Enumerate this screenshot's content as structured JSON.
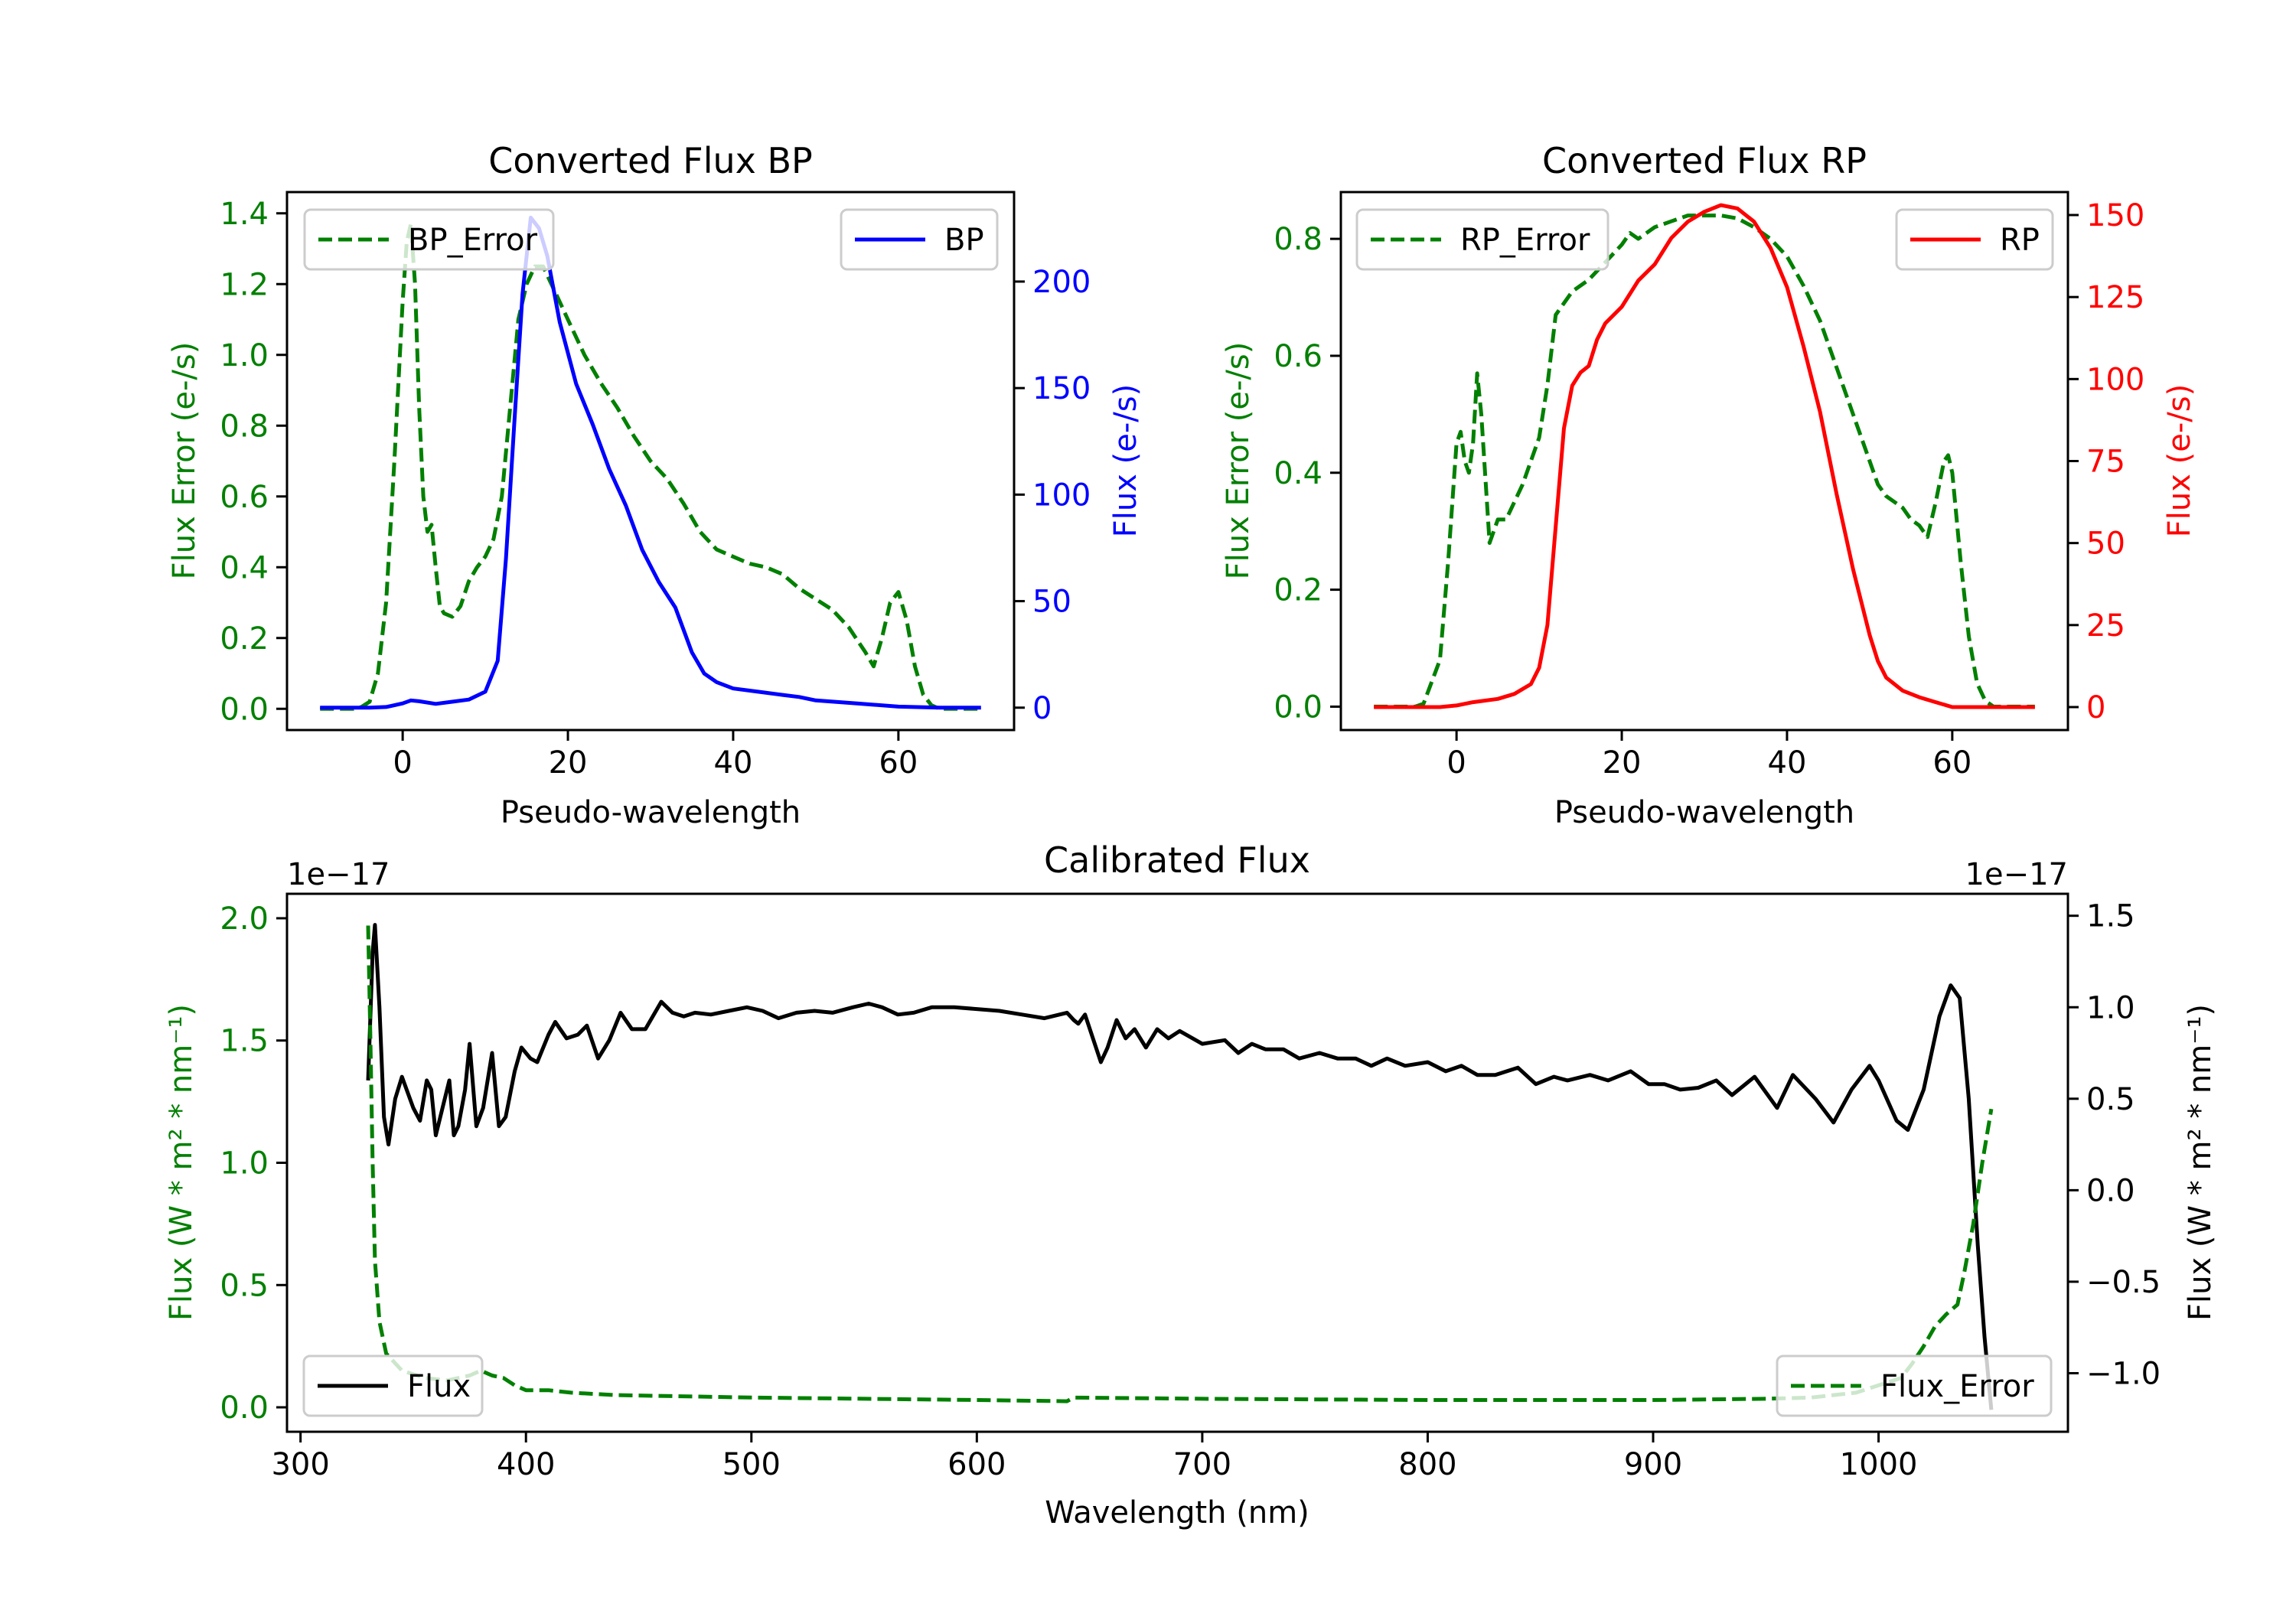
{
  "colors": {
    "bp": "#0000ff",
    "rp": "#ff0000",
    "error": "#008000",
    "flux": "#000000"
  },
  "chart_data": [
    {
      "id": "bp",
      "type": "line",
      "title": "Converted Flux BP",
      "xlabel": "Pseudo-wavelength",
      "ylabel_left": "Flux Error (e-/s)",
      "ylabel_right": "Flux (e-/s)",
      "xlim": [
        -14,
        74
      ],
      "ylim_left": [
        -0.06,
        1.46
      ],
      "ylim_right": [
        -10.5,
        242
      ],
      "xticks": [
        0,
        20,
        40,
        60
      ],
      "xtick_labels": [
        "0",
        "20",
        "40",
        "60"
      ],
      "yticks_left": [
        0.0,
        0.2,
        0.4,
        0.6,
        0.8,
        1.0,
        1.2,
        1.4
      ],
      "ytick_labels_left": [
        "0.0",
        "0.2",
        "0.4",
        "0.6",
        "0.8",
        "1.0",
        "1.2",
        "1.4"
      ],
      "yticks_right": [
        0,
        50,
        100,
        150,
        200
      ],
      "ytick_labels_right": [
        "0",
        "50",
        "100",
        "150",
        "200"
      ],
      "legend": [
        {
          "label": "BP_Error",
          "placement": "upper-left",
          "style": "dashed"
        },
        {
          "label": "BP",
          "placement": "upper-right",
          "style": "solid"
        }
      ],
      "series": [
        {
          "name": "BP_Error",
          "axis": "left",
          "style": "dashed",
          "color_key": "error",
          "x": [
            -10,
            -6,
            -5,
            -4,
            -3,
            -2,
            -1,
            0,
            0.5,
            1,
            1.5,
            2,
            2.5,
            3,
            3.5,
            4,
            4.5,
            5,
            6,
            7,
            8,
            9,
            10,
            11,
            12,
            13,
            14,
            15,
            16,
            17,
            18,
            19,
            20,
            22,
            24,
            26,
            28,
            30,
            32,
            34,
            36,
            38,
            40,
            42,
            44,
            46,
            48,
            50,
            52,
            54,
            56,
            57,
            58,
            59,
            60,
            61,
            62,
            63,
            64,
            65,
            70
          ],
          "y": [
            0,
            0,
            0.005,
            0.02,
            0.1,
            0.3,
            0.7,
            1.15,
            1.32,
            1.37,
            1.2,
            0.85,
            0.6,
            0.5,
            0.52,
            0.4,
            0.29,
            0.27,
            0.26,
            0.29,
            0.36,
            0.4,
            0.43,
            0.48,
            0.6,
            0.85,
            1.1,
            1.2,
            1.25,
            1.25,
            1.2,
            1.15,
            1.1,
            1.0,
            0.92,
            0.85,
            0.77,
            0.7,
            0.65,
            0.58,
            0.5,
            0.45,
            0.43,
            0.41,
            0.4,
            0.38,
            0.34,
            0.31,
            0.28,
            0.23,
            0.16,
            0.12,
            0.2,
            0.3,
            0.33,
            0.25,
            0.12,
            0.04,
            0.01,
            0,
            0
          ]
        },
        {
          "name": "BP",
          "axis": "right",
          "style": "solid",
          "color_key": "bp",
          "x": [
            -10,
            -4,
            -2,
            0,
            1,
            2,
            4,
            6,
            8,
            10,
            11.5,
            12.5,
            13.5,
            14.5,
            15.5,
            16.5,
            17.5,
            19,
            21,
            23,
            25,
            27,
            29,
            31,
            33,
            35,
            36.5,
            38,
            40,
            43,
            46,
            48,
            50,
            55,
            60,
            65,
            70
          ],
          "y": [
            0,
            0,
            0.3,
            2,
            3.4,
            3,
            1.8,
            2.8,
            3.8,
            7.5,
            22,
            70,
            133,
            194,
            230,
            225,
            212,
            181,
            152,
            133,
            112,
            95,
            74,
            59,
            47,
            26,
            16,
            12,
            9,
            7.5,
            6,
            5,
            3.4,
            2,
            0.5,
            0,
            0
          ]
        }
      ]
    },
    {
      "id": "rp",
      "type": "line",
      "title": "Converted Flux RP",
      "xlabel": "Pseudo-wavelength",
      "ylabel_left": "Flux Error (e-/s)",
      "ylabel_right": "Flux (e-/s)",
      "xlim": [
        -14,
        74
      ],
      "ylim_left": [
        -0.04,
        0.88
      ],
      "ylim_right": [
        -7,
        157
      ],
      "xticks": [
        0,
        20,
        40,
        60
      ],
      "xtick_labels": [
        "0",
        "20",
        "40",
        "60"
      ],
      "yticks_left": [
        0.0,
        0.2,
        0.4,
        0.6,
        0.8
      ],
      "ytick_labels_left": [
        "0.0",
        "0.2",
        "0.4",
        "0.6",
        "0.8"
      ],
      "yticks_right": [
        0,
        25,
        50,
        75,
        100,
        125,
        150
      ],
      "ytick_labels_right": [
        "0",
        "25",
        "50",
        "75",
        "100",
        "125",
        "150"
      ],
      "legend": [
        {
          "label": "RP_Error",
          "placement": "upper-left",
          "style": "dashed"
        },
        {
          "label": "RP",
          "placement": "upper-right",
          "style": "solid"
        }
      ],
      "series": [
        {
          "name": "RP_Error",
          "axis": "left",
          "style": "dashed",
          "color_key": "error",
          "x": [
            -10,
            -5,
            -4,
            -2,
            -1,
            0,
            0.5,
            1,
            1.5,
            2,
            2.5,
            3,
            4,
            4.5,
            5,
            6,
            7,
            8,
            9,
            10,
            11,
            12,
            13,
            14,
            16,
            18,
            20,
            21,
            22,
            24,
            26,
            28,
            30,
            32,
            34,
            36,
            38,
            40,
            42,
            44,
            46,
            48,
            50,
            51,
            52,
            54,
            55,
            56,
            57,
            58,
            59,
            59.5,
            60,
            61,
            62,
            63,
            64,
            65,
            70
          ],
          "y": [
            0,
            0,
            0.005,
            0.08,
            0.25,
            0.45,
            0.47,
            0.42,
            0.4,
            0.45,
            0.57,
            0.5,
            0.28,
            0.3,
            0.32,
            0.32,
            0.35,
            0.38,
            0.42,
            0.46,
            0.55,
            0.67,
            0.69,
            0.71,
            0.73,
            0.76,
            0.79,
            0.81,
            0.8,
            0.82,
            0.83,
            0.84,
            0.84,
            0.84,
            0.835,
            0.82,
            0.8,
            0.77,
            0.72,
            0.66,
            0.58,
            0.5,
            0.42,
            0.38,
            0.36,
            0.34,
            0.32,
            0.31,
            0.29,
            0.35,
            0.42,
            0.43,
            0.4,
            0.25,
            0.12,
            0.04,
            0.01,
            0,
            0
          ]
        },
        {
          "name": "RP",
          "axis": "right",
          "style": "solid",
          "color_key": "rp",
          "x": [
            -10,
            -2,
            0,
            2,
            5,
            7,
            9,
            10,
            11,
            12,
            13,
            14,
            15,
            16,
            17,
            18,
            20,
            22,
            24,
            26,
            28,
            30,
            32,
            34,
            36,
            38,
            40,
            42,
            44,
            46,
            48,
            50,
            51,
            52,
            54,
            56,
            58,
            60,
            65,
            70
          ],
          "y": [
            0,
            0,
            0.5,
            1.5,
            2.5,
            4,
            7,
            12,
            25,
            55,
            85,
            98,
            102,
            104,
            112,
            117,
            122,
            130,
            135,
            143,
            148,
            151,
            153,
            152,
            148,
            140,
            128,
            110,
            90,
            65,
            42,
            22,
            14,
            9,
            5,
            3,
            1.5,
            0,
            0,
            0
          ]
        }
      ]
    },
    {
      "id": "calibrated",
      "type": "line",
      "title": "Calibrated Flux",
      "xlabel": "Wavelength (nm)",
      "ylabel_left": "Flux (W * m² * nm⁻¹)",
      "ylabel_right": "Flux (W * m² * nm⁻¹)",
      "offset_left": "1e−17",
      "offset_right": "1e−17",
      "xlim": [
        294,
        1084
      ],
      "ylim_left": [
        -0.1,
        2.1
      ],
      "ylim_right": [
        -1.32,
        1.62
      ],
      "xticks": [
        300,
        400,
        500,
        600,
        700,
        800,
        900,
        1000
      ],
      "xtick_labels": [
        "300",
        "400",
        "500",
        "600",
        "700",
        "800",
        "900",
        "1000"
      ],
      "yticks_left": [
        0.0,
        0.5,
        1.0,
        1.5,
        2.0
      ],
      "ytick_labels_left": [
        "0.0",
        "0.5",
        "1.0",
        "1.5",
        "2.0"
      ],
      "yticks_right": [
        -1.0,
        -0.5,
        0.0,
        0.5,
        1.0,
        1.5
      ],
      "ytick_labels_right": [
        "−1.0",
        "−0.5",
        "0.0",
        "0.5",
        "1.0",
        "1.5"
      ],
      "legend": [
        {
          "label": "Flux",
          "placement": "lower-left",
          "style": "solid"
        },
        {
          "label": "Flux_Error",
          "placement": "lower-right",
          "style": "dashed"
        }
      ],
      "series": [
        {
          "name": "Flux",
          "axis": "right",
          "style": "solid",
          "color_key": "flux",
          "x": [
            330,
            332,
            333,
            335,
            337,
            339,
            342,
            345,
            350,
            353,
            356,
            358,
            360,
            363,
            366,
            368,
            370,
            373,
            375,
            378,
            381,
            385,
            388,
            391,
            395,
            398,
            402,
            405,
            410,
            413,
            418,
            423,
            427,
            432,
            437,
            442,
            447,
            453,
            460,
            465,
            470,
            475,
            482,
            490,
            498,
            505,
            512,
            520,
            528,
            536,
            545,
            552,
            558,
            565,
            572,
            580,
            590,
            600,
            610,
            620,
            630,
            640,
            643,
            645,
            648,
            655,
            658,
            662,
            666,
            670,
            675,
            680,
            685,
            690,
            700,
            710,
            716,
            722,
            728,
            736,
            743,
            752,
            760,
            768,
            775,
            782,
            790,
            800,
            808,
            815,
            822,
            830,
            840,
            848,
            856,
            862,
            872,
            880,
            890,
            898,
            905,
            912,
            920,
            928,
            935,
            945,
            955,
            962,
            972,
            980,
            988,
            996,
            1000,
            1008,
            1013,
            1020,
            1027,
            1032,
            1036,
            1040,
            1044,
            1047,
            1050
          ],
          "y": [
            0.6,
            1.3,
            1.45,
            1.0,
            0.4,
            0.25,
            0.5,
            0.62,
            0.45,
            0.38,
            0.6,
            0.55,
            0.3,
            0.45,
            0.6,
            0.3,
            0.35,
            0.55,
            0.8,
            0.35,
            0.45,
            0.75,
            0.35,
            0.4,
            0.65,
            0.78,
            0.72,
            0.7,
            0.85,
            0.92,
            0.83,
            0.85,
            0.9,
            0.72,
            0.82,
            0.97,
            0.88,
            0.88,
            1.03,
            0.97,
            0.95,
            0.97,
            0.96,
            0.98,
            1.0,
            0.98,
            0.94,
            0.97,
            0.98,
            0.97,
            1.0,
            1.02,
            1.0,
            0.96,
            0.97,
            1.0,
            1.0,
            0.99,
            0.98,
            0.96,
            0.94,
            0.97,
            0.93,
            0.91,
            0.96,
            0.7,
            0.78,
            0.93,
            0.83,
            0.88,
            0.78,
            0.88,
            0.83,
            0.87,
            0.8,
            0.82,
            0.75,
            0.8,
            0.77,
            0.77,
            0.72,
            0.75,
            0.72,
            0.72,
            0.68,
            0.72,
            0.68,
            0.7,
            0.65,
            0.68,
            0.63,
            0.63,
            0.67,
            0.58,
            0.62,
            0.6,
            0.63,
            0.6,
            0.65,
            0.58,
            0.58,
            0.55,
            0.56,
            0.6,
            0.52,
            0.62,
            0.45,
            0.63,
            0.5,
            0.37,
            0.55,
            0.68,
            0.6,
            0.38,
            0.33,
            0.55,
            0.95,
            1.12,
            1.05,
            0.5,
            -0.3,
            -0.8,
            -1.2
          ]
        },
        {
          "name": "Flux_Error",
          "axis": "left",
          "style": "dashed",
          "color_key": "error",
          "x": [
            330,
            331,
            332,
            333,
            335,
            338,
            345,
            355,
            365,
            375,
            380,
            385,
            390,
            395,
            400,
            410,
            420,
            440,
            500,
            600,
            640,
            643,
            700,
            800,
            900,
            950,
            970,
            990,
            1010,
            1015,
            1020,
            1025,
            1030,
            1035,
            1038,
            1042,
            1046,
            1050
          ],
          "y": [
            1.97,
            1.5,
            1.0,
            0.6,
            0.35,
            0.22,
            0.15,
            0.12,
            0.11,
            0.13,
            0.15,
            0.13,
            0.12,
            0.09,
            0.07,
            0.07,
            0.06,
            0.05,
            0.04,
            0.03,
            0.025,
            0.04,
            0.035,
            0.03,
            0.03,
            0.035,
            0.04,
            0.06,
            0.12,
            0.18,
            0.25,
            0.33,
            0.38,
            0.42,
            0.55,
            0.75,
            1.0,
            1.22
          ]
        }
      ]
    }
  ]
}
